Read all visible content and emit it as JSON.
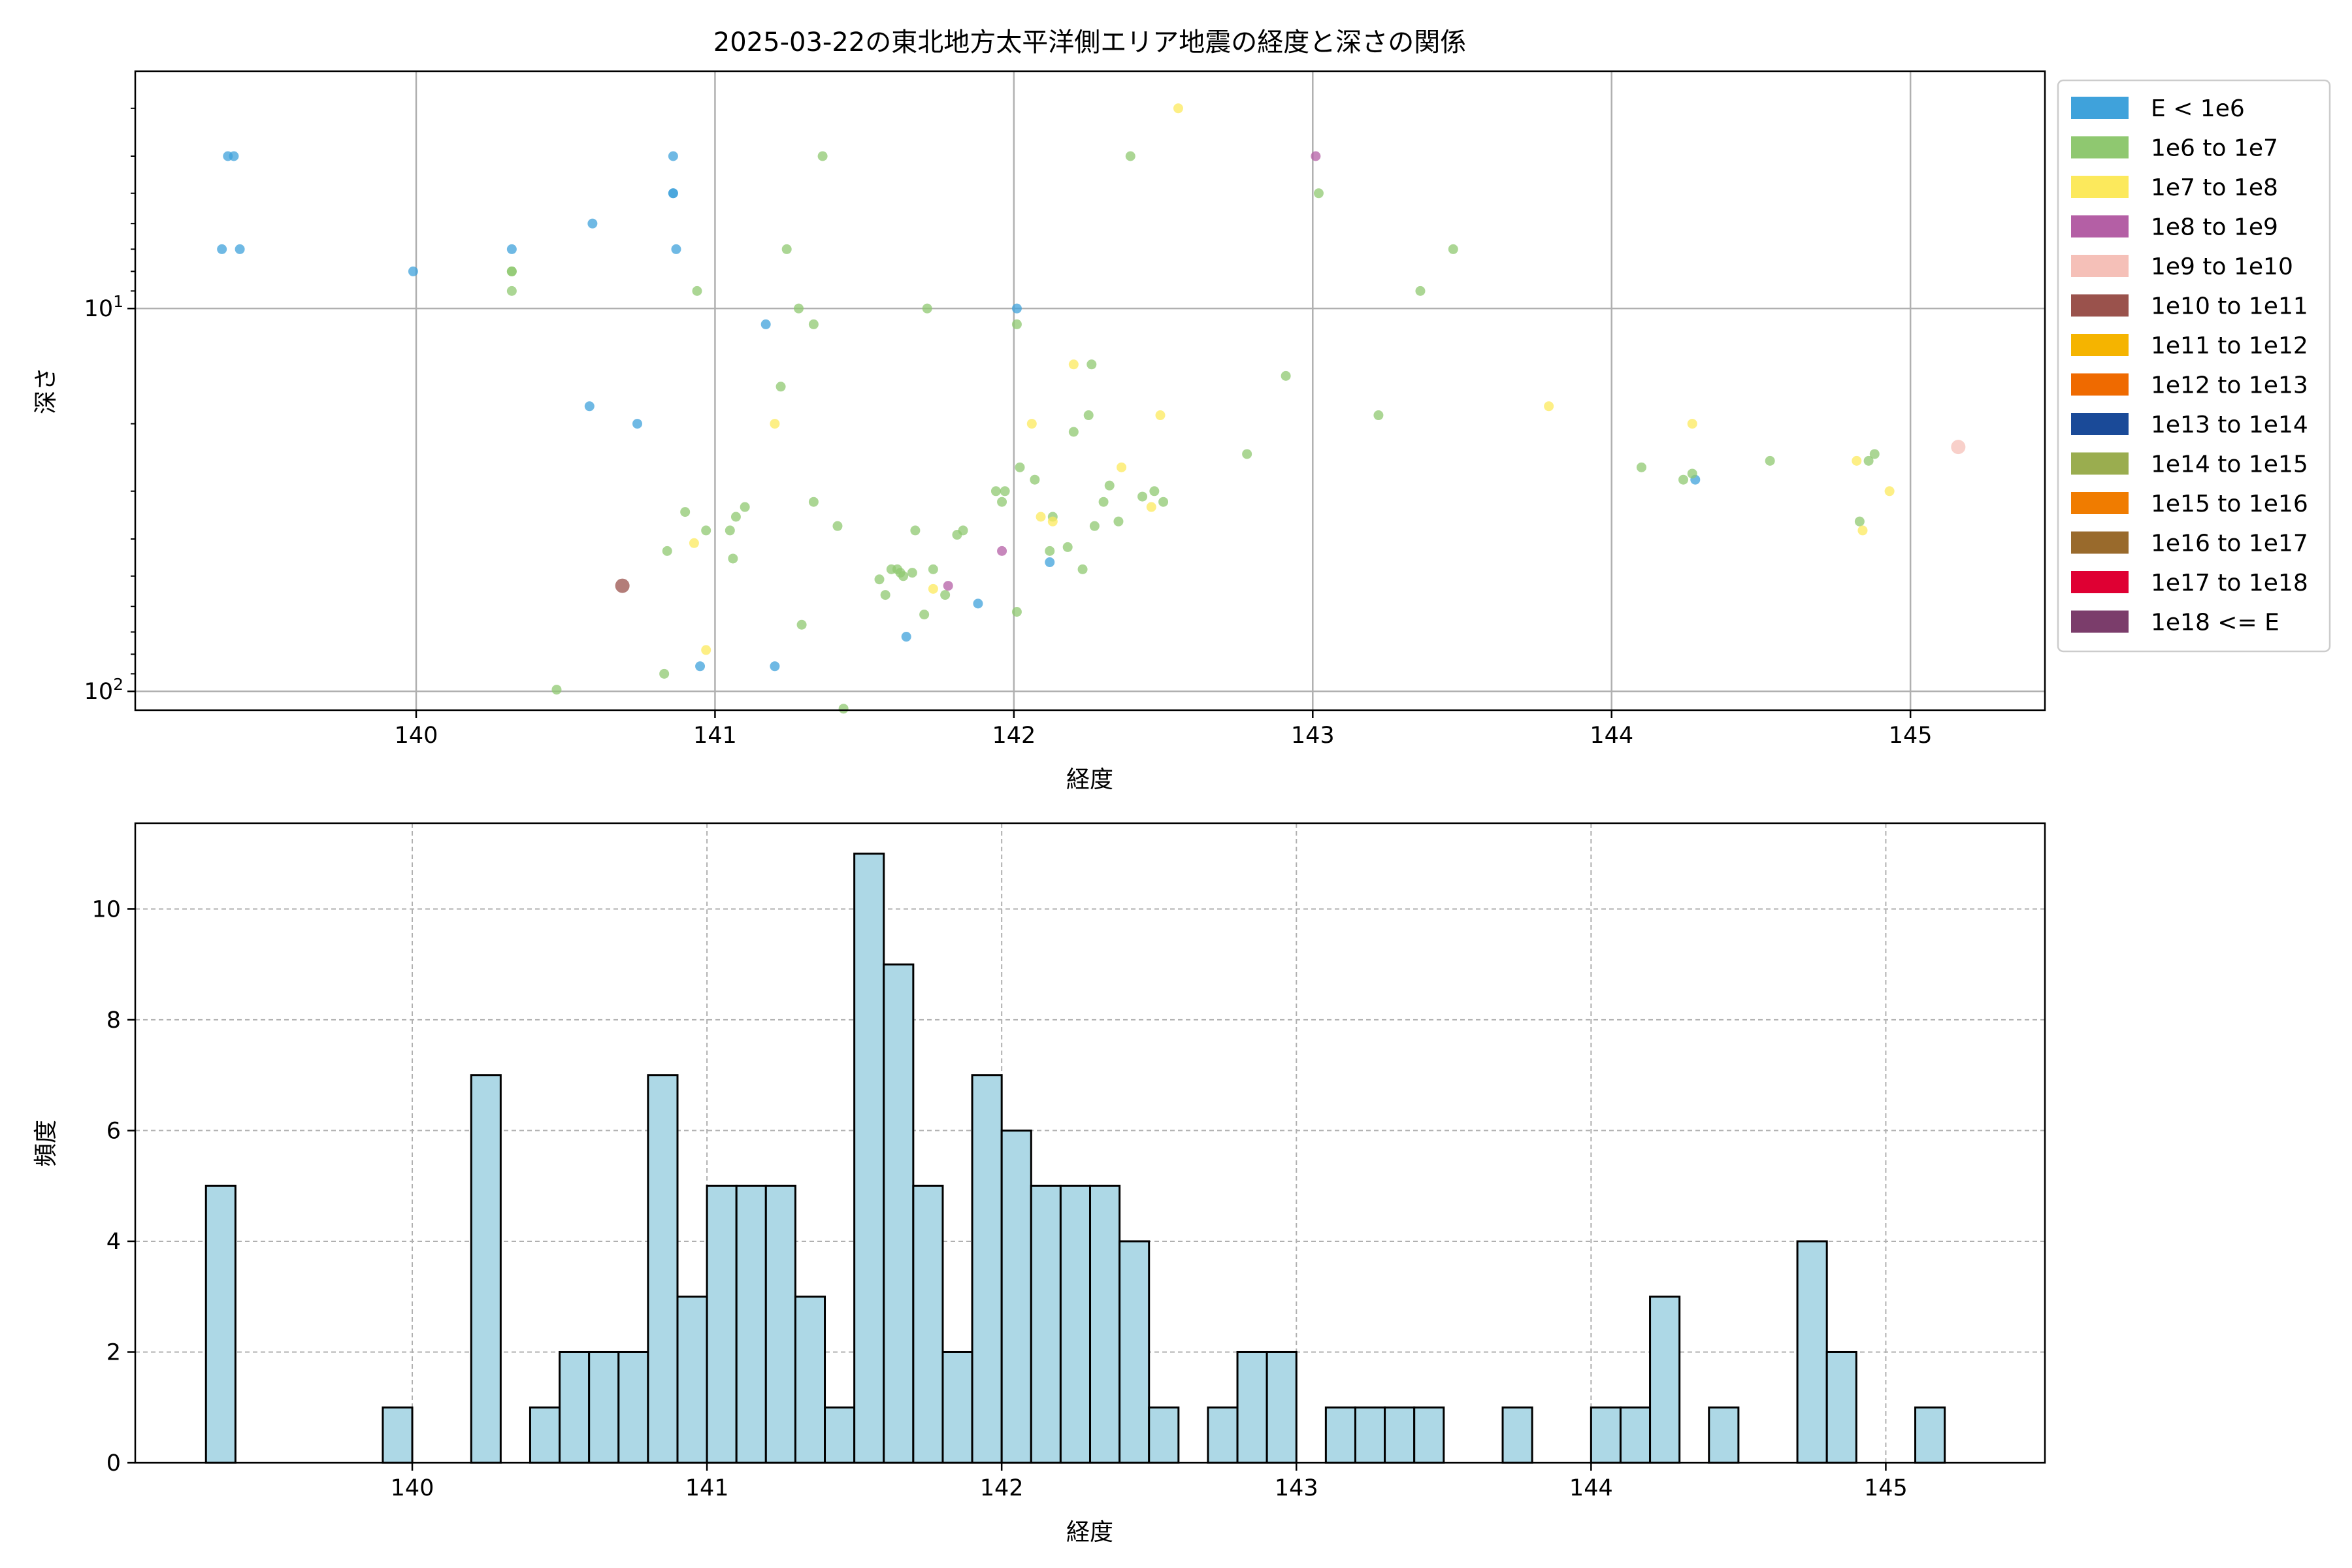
{
  "chart_data": [
    {
      "type": "scatter",
      "title": "2025-03-22の東北地方太平洋側エリア地震の経度と深さの関係",
      "xlabel": "経度",
      "ylabel": "深さ",
      "xlim": [
        139.06,
        145.45
      ],
      "ylim": [
        112,
        2.4
      ],
      "yscale": "log",
      "y_inverted": true,
      "xticks": [
        "140",
        "141",
        "142",
        "143",
        "144",
        "145"
      ],
      "yticks": [
        {
          "value": 10,
          "base": "10",
          "exp": "1"
        },
        {
          "value": 100,
          "base": "10",
          "exp": "2"
        }
      ],
      "grid": true,
      "legend_position": "outside-right",
      "legend": [
        {
          "label": "E < 1e6",
          "color": "#3fa2db"
        },
        {
          "label": "1e6 to 1e7",
          "color": "#8fc870"
        },
        {
          "label": "1e7 to 1e8",
          "color": "#fce95c"
        },
        {
          "label": "1e8 to 1e9",
          "color": "#b45fa5"
        },
        {
          "label": "1e9 to 1e10",
          "color": "#f5c0b8"
        },
        {
          "label": "1e10 to 1e11",
          "color": "#9a524c"
        },
        {
          "label": "1e11 to 1e12",
          "color": "#f5b400"
        },
        {
          "label": "1e12 to 1e13",
          "color": "#ef6a00"
        },
        {
          "label": "1e13 to 1e14",
          "color": "#1a4a98"
        },
        {
          "label": "1e14 to 1e15",
          "color": "#9aad4f"
        },
        {
          "label": "1e15 to 1e16",
          "color": "#f07c00"
        },
        {
          "label": "1e16 to 1e17",
          "color": "#996a2c"
        },
        {
          "label": "1e17 to 1e18",
          "color": "#df0033"
        },
        {
          "label": "1e18 <= E",
          "color": "#7b3d6b"
        }
      ],
      "series": [
        {
          "category": 0,
          "points": [
            [
              139.35,
              7
            ],
            [
              139.37,
              4
            ],
            [
              139.39,
              4
            ],
            [
              139.41,
              7
            ],
            [
              139.99,
              8
            ],
            [
              140.32,
              7
            ],
            [
              140.59,
              6
            ],
            [
              140.58,
              18
            ],
            [
              140.74,
              20
            ],
            [
              140.86,
              4
            ],
            [
              140.86,
              5
            ],
            [
              140.86,
              5
            ],
            [
              140.87,
              7
            ],
            [
              140.95,
              86
            ],
            [
              141.17,
              11
            ],
            [
              141.2,
              86
            ],
            [
              141.64,
              72
            ],
            [
              141.88,
              59
            ],
            [
              142.01,
              10
            ],
            [
              142.12,
              46
            ],
            [
              144.28,
              28
            ]
          ]
        },
        {
          "category": 1,
          "points": [
            [
              140.32,
              8
            ],
            [
              140.32,
              8
            ],
            [
              140.32,
              9
            ],
            [
              140.47,
              99
            ],
            [
              140.83,
              90
            ],
            [
              140.84,
              43
            ],
            [
              140.9,
              34
            ],
            [
              140.94,
              9
            ],
            [
              140.97,
              38
            ],
            [
              141.05,
              38
            ],
            [
              141.06,
              45
            ],
            [
              141.07,
              35
            ],
            [
              141.1,
              33
            ],
            [
              141.24,
              7
            ],
            [
              141.22,
              16
            ],
            [
              141.28,
              10
            ],
            [
              141.29,
              67
            ],
            [
              141.33,
              11
            ],
            [
              141.33,
              32
            ],
            [
              141.36,
              4
            ],
            [
              141.41,
              37
            ],
            [
              141.43,
              111
            ],
            [
              141.55,
              51
            ],
            [
              141.57,
              56
            ],
            [
              141.59,
              48
            ],
            [
              141.61,
              48
            ],
            [
              141.62,
              49
            ],
            [
              141.63,
              50
            ],
            [
              141.66,
              49
            ],
            [
              141.67,
              38
            ],
            [
              141.7,
              63
            ],
            [
              141.71,
              10
            ],
            [
              141.73,
              48
            ],
            [
              141.77,
              56
            ],
            [
              141.81,
              39
            ],
            [
              141.83,
              38
            ],
            [
              141.94,
              30
            ],
            [
              141.97,
              30
            ],
            [
              141.96,
              32
            ],
            [
              142.02,
              26
            ],
            [
              142.01,
              62
            ],
            [
              142.01,
              11
            ],
            [
              142.07,
              28
            ],
            [
              142.12,
              43
            ],
            [
              142.13,
              35
            ],
            [
              142.18,
              42
            ],
            [
              142.2,
              21
            ],
            [
              142.23,
              48
            ],
            [
              142.25,
              19
            ],
            [
              142.26,
              14
            ],
            [
              142.27,
              37
            ],
            [
              142.3,
              32
            ],
            [
              142.32,
              29
            ],
            [
              142.35,
              36
            ],
            [
              142.39,
              4
            ],
            [
              142.43,
              31
            ],
            [
              142.47,
              30
            ],
            [
              142.5,
              32
            ],
            [
              142.78,
              24
            ],
            [
              142.91,
              15
            ],
            [
              143.02,
              5
            ],
            [
              143.22,
              19
            ],
            [
              143.36,
              9
            ],
            [
              143.47,
              7
            ],
            [
              144.1,
              26
            ],
            [
              144.24,
              28
            ],
            [
              144.27,
              27
            ],
            [
              144.53,
              25
            ],
            [
              144.83,
              36
            ],
            [
              144.86,
              25
            ],
            [
              144.88,
              24
            ]
          ]
        },
        {
          "category": 2,
          "points": [
            [
              140.93,
              41
            ],
            [
              140.97,
              78
            ],
            [
              141.2,
              20
            ],
            [
              141.73,
              54
            ],
            [
              142.06,
              20
            ],
            [
              142.09,
              35
            ],
            [
              142.13,
              36
            ],
            [
              142.2,
              14
            ],
            [
              142.36,
              26
            ],
            [
              142.46,
              33
            ],
            [
              142.49,
              19
            ],
            [
              142.55,
              3
            ],
            [
              143.79,
              18
            ],
            [
              144.27,
              20
            ],
            [
              144.82,
              25
            ],
            [
              144.84,
              38
            ],
            [
              144.93,
              30
            ]
          ]
        },
        {
          "category": 3,
          "points": [
            [
              141.78,
              53
            ],
            [
              141.96,
              43
            ],
            [
              143.01,
              4
            ]
          ]
        },
        {
          "category": 4,
          "points": [
            [
              145.16,
              23
            ]
          ]
        },
        {
          "category": 5,
          "points": [
            [
              140.69,
              53
            ]
          ]
        }
      ]
    },
    {
      "type": "bar",
      "title": "",
      "xlabel": "経度",
      "ylabel": "頻度",
      "xlim": [
        139.06,
        145.54
      ],
      "ylim": [
        0,
        11.55
      ],
      "bin_width": 0.1,
      "bar_color": "#add8e6",
      "bar_edge": "#000000",
      "xticks": [
        "140",
        "141",
        "142",
        "143",
        "144",
        "145"
      ],
      "yticks": [
        "0",
        "2",
        "4",
        "6",
        "8",
        "10"
      ],
      "grid": true,
      "bins": [
        {
          "x": 139.35,
          "count": 5
        },
        {
          "x": 139.95,
          "count": 1
        },
        {
          "x": 140.25,
          "count": 7
        },
        {
          "x": 140.45,
          "count": 1
        },
        {
          "x": 140.55,
          "count": 2
        },
        {
          "x": 140.65,
          "count": 2
        },
        {
          "x": 140.75,
          "count": 2
        },
        {
          "x": 140.85,
          "count": 7
        },
        {
          "x": 140.95,
          "count": 3
        },
        {
          "x": 141.05,
          "count": 5
        },
        {
          "x": 141.15,
          "count": 5
        },
        {
          "x": 141.25,
          "count": 5
        },
        {
          "x": 141.35,
          "count": 3
        },
        {
          "x": 141.45,
          "count": 1
        },
        {
          "x": 141.55,
          "count": 11
        },
        {
          "x": 141.65,
          "count": 9
        },
        {
          "x": 141.75,
          "count": 5
        },
        {
          "x": 141.85,
          "count": 2
        },
        {
          "x": 141.95,
          "count": 7
        },
        {
          "x": 142.05,
          "count": 6
        },
        {
          "x": 142.15,
          "count": 5
        },
        {
          "x": 142.25,
          "count": 5
        },
        {
          "x": 142.35,
          "count": 5
        },
        {
          "x": 142.45,
          "count": 4
        },
        {
          "x": 142.55,
          "count": 1
        },
        {
          "x": 142.75,
          "count": 1
        },
        {
          "x": 142.85,
          "count": 2
        },
        {
          "x": 142.95,
          "count": 2
        },
        {
          "x": 143.15,
          "count": 1
        },
        {
          "x": 143.25,
          "count": 1
        },
        {
          "x": 143.35,
          "count": 1
        },
        {
          "x": 143.45,
          "count": 1
        },
        {
          "x": 143.75,
          "count": 1
        },
        {
          "x": 144.05,
          "count": 1
        },
        {
          "x": 144.15,
          "count": 1
        },
        {
          "x": 144.25,
          "count": 3
        },
        {
          "x": 144.45,
          "count": 1
        },
        {
          "x": 144.75,
          "count": 4
        },
        {
          "x": 144.85,
          "count": 2
        },
        {
          "x": 145.15,
          "count": 1
        }
      ]
    }
  ]
}
